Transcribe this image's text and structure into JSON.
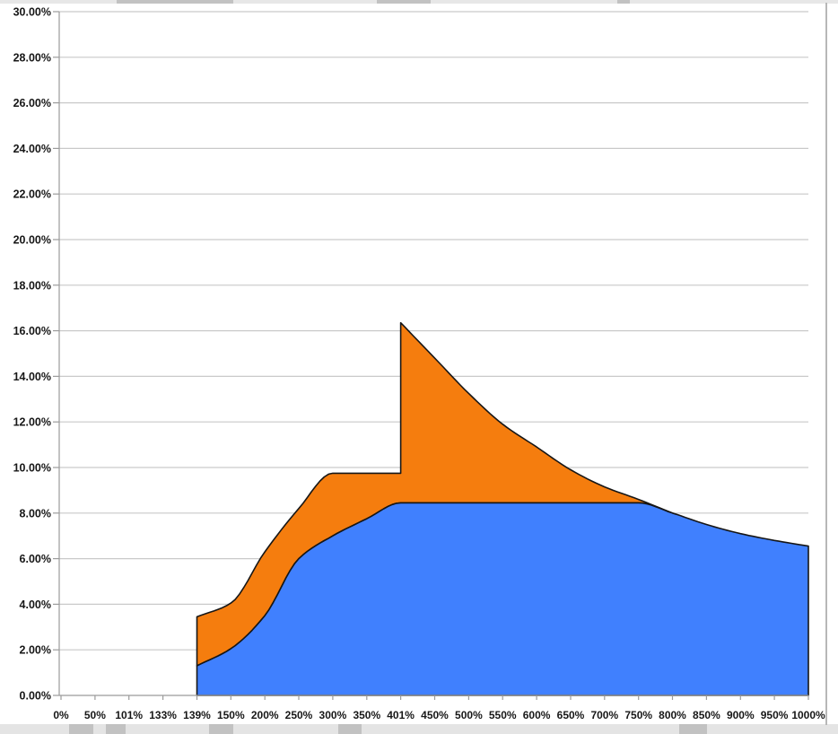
{
  "chart_data": {
    "type": "area",
    "stacked": true,
    "grid": true,
    "legend": "none",
    "title": "",
    "xlabel": "",
    "ylabel": "",
    "ylim": [
      0,
      30
    ],
    "ytick_step": 2,
    "y_tick_labels": [
      "0.00%",
      "2.00%",
      "4.00%",
      "6.00%",
      "8.00%",
      "10.00%",
      "12.00%",
      "14.00%",
      "16.00%",
      "18.00%",
      "20.00%",
      "22.00%",
      "24.00%",
      "26.00%",
      "28.00%",
      "30.00%"
    ],
    "categories": [
      "0%",
      "50%",
      "101%",
      "133%",
      "139%",
      "150%",
      "200%",
      "250%",
      "300%",
      "350%",
      "401%",
      "450%",
      "500%",
      "550%",
      "600%",
      "650%",
      "700%",
      "750%",
      "800%",
      "850%",
      "900%",
      "950%",
      "1000%"
    ],
    "series": [
      {
        "name": "bottom-blue-area",
        "color": "#4080FE",
        "values": [
          null,
          null,
          null,
          null,
          1.3,
          2.05,
          3.5,
          6.0,
          7.0,
          7.75,
          8.45,
          8.45,
          8.45,
          8.45,
          8.45,
          8.45,
          8.45,
          8.45,
          8.0,
          7.5,
          7.1,
          6.8,
          6.55
        ]
      },
      {
        "name": "top-orange-area",
        "color": "#F57D0E",
        "values": [
          null,
          null,
          null,
          null,
          2.15,
          2.0,
          2.8,
          2.2,
          2.75,
          2.0,
          7.9,
          6.35,
          4.8,
          3.45,
          2.45,
          1.45,
          0.7,
          0.15,
          0.0,
          0.0,
          0.0,
          0.0,
          0.0
        ]
      }
    ],
    "stacked_total": [
      null,
      null,
      null,
      null,
      3.45,
      4.05,
      6.3,
      8.2,
      9.75,
      9.75,
      16.35,
      14.8,
      13.25,
      11.9,
      10.9,
      9.9,
      9.15,
      8.6,
      8.0,
      7.5,
      7.1,
      6.8,
      6.55
    ],
    "spike_note": {
      "category": "401%",
      "value_before_jump": 9.75,
      "peak_value": 16.35
    },
    "data_starts_at_category": "139%"
  },
  "colors": {
    "blue_fill": "#4080FE",
    "orange_fill": "#F57D0E",
    "series_outline": "#161616",
    "gridline": "#c9c9c9",
    "axis_line": "#9b9b9b",
    "label_text": "#171717",
    "background": "#ffffff"
  }
}
